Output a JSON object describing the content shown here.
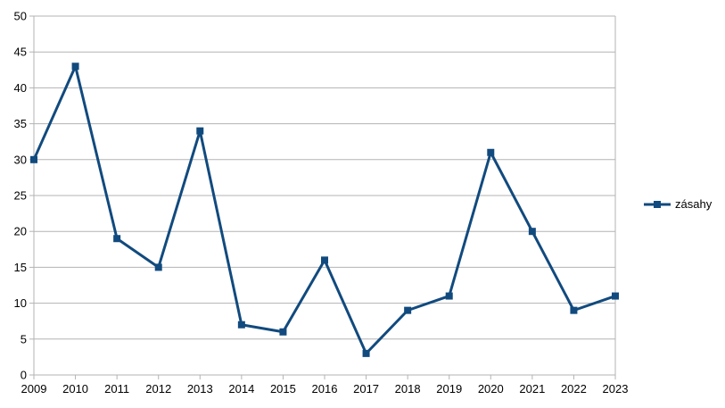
{
  "chart_data": {
    "type": "line",
    "title": "",
    "xlabel": "",
    "ylabel": "",
    "categories": [
      "2009",
      "2010",
      "2011",
      "2012",
      "2013",
      "2014",
      "2015",
      "2016",
      "2017",
      "2018",
      "2019",
      "2020",
      "2021",
      "2022",
      "2023"
    ],
    "series": [
      {
        "name": "zásahy",
        "values": [
          30,
          43,
          19,
          15,
          34,
          7,
          6,
          16,
          3,
          9,
          11,
          31,
          20,
          9,
          11
        ],
        "color": "#114a7e",
        "marker": "square"
      }
    ],
    "ylim": [
      0,
      50
    ],
    "ytick_step": 5,
    "yticks": [
      "0",
      "5",
      "10",
      "15",
      "20",
      "25",
      "30",
      "35",
      "40",
      "45",
      "50"
    ],
    "grid": "horizontal",
    "grid_color": "#b3b3b3",
    "axis_color": "#b3b3b3",
    "text_color": "#000000",
    "background_color": "#ffffff",
    "legend_position": "right",
    "legend_entries": [
      "zásahy"
    ]
  }
}
